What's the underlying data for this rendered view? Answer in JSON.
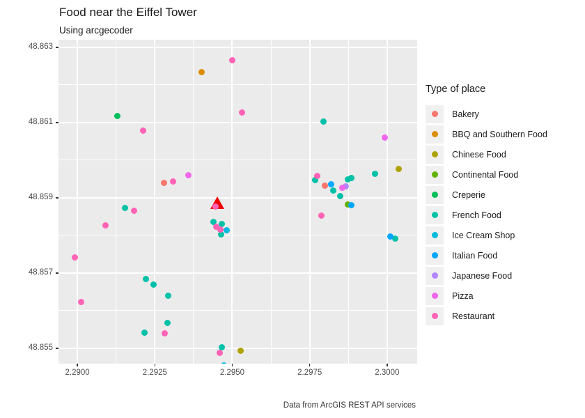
{
  "header": {
    "title": "Food near the Eiffel Tower",
    "subtitle": "Using arcgecoder",
    "caption": "Data from ArcGIS REST API services"
  },
  "legend": {
    "title": "Type of place",
    "items": [
      {
        "label": "Bakery",
        "color": "#F8766D"
      },
      {
        "label": "BBQ and Southern Food",
        "color": "#DB8E00"
      },
      {
        "label": "Chinese Food",
        "color": "#AEA200"
      },
      {
        "label": "Continental Food",
        "color": "#64B200"
      },
      {
        "label": "Creperie",
        "color": "#00BD5C"
      },
      {
        "label": "French Food",
        "color": "#00C1A7"
      },
      {
        "label": "Ice Cream Shop",
        "color": "#00BADE"
      },
      {
        "label": "Italian Food",
        "color": "#00A6FF"
      },
      {
        "label": "Japanese Food",
        "color": "#B385FF"
      },
      {
        "label": "Pizza",
        "color": "#EF67EB"
      },
      {
        "label": "Restaurant",
        "color": "#FF63B6"
      }
    ]
  },
  "chart_data": {
    "type": "scatter",
    "title": "Food near the Eiffel Tower",
    "subtitle": "Using arcgecoder",
    "caption": "Data from ArcGIS REST API services",
    "xlabel": "",
    "ylabel": "",
    "xlim": [
      2.28939,
      2.30097
    ],
    "ylim": [
      48.85459,
      48.8632
    ],
    "x_major": [
      2.29,
      2.2925,
      2.295,
      2.2975,
      2.3
    ],
    "x_minor": [
      2.29125,
      2.29375,
      2.29625,
      2.29875
    ],
    "y_major": [
      48.855,
      48.857,
      48.859,
      48.861,
      48.863
    ],
    "y_minor": [
      48.856,
      48.858,
      48.86,
      48.862
    ],
    "x_tick_labels": [
      "2.2900",
      "2.2925",
      "2.2950",
      "2.2975",
      "2.3000"
    ],
    "y_tick_labels": [
      "48.855",
      "48.857",
      "48.859",
      "48.861",
      "48.863"
    ],
    "panel_background": "#EBEBEB",
    "gridline_color": "#FFFFFF",
    "legend_position": "right",
    "series": [
      {
        "name": "Bakery",
        "color": "#F8766D",
        "points": [
          [
            2.29279,
            48.85939
          ],
          [
            2.298,
            48.85932
          ]
        ]
      },
      {
        "name": "BBQ and Southern Food",
        "color": "#DB8E00",
        "points": [
          [
            2.29402,
            48.86233
          ]
        ]
      },
      {
        "name": "Chinese Food",
        "color": "#AEA200",
        "points": [
          [
            2.30038,
            48.85976
          ],
          [
            2.29528,
            48.85493
          ]
        ]
      },
      {
        "name": "Continental Food",
        "color": "#64B200",
        "points": [
          [
            2.29874,
            48.85883
          ]
        ]
      },
      {
        "name": "Creperie",
        "color": "#00BD5C",
        "points": [
          [
            2.29128,
            48.86118
          ]
        ]
      },
      {
        "name": "French Food",
        "color": "#00C1A7",
        "points": [
          [
            2.29795,
            48.86103
          ],
          [
            2.29961,
            48.85963
          ],
          [
            2.29874,
            48.85948
          ],
          [
            2.29885,
            48.85952
          ],
          [
            2.29768,
            48.85947
          ],
          [
            2.29827,
            48.85919
          ],
          [
            2.29849,
            48.85904
          ],
          [
            2.30027,
            48.85792
          ],
          [
            2.29153,
            48.85872
          ],
          [
            2.2944,
            48.85835
          ],
          [
            2.29467,
            48.85831
          ],
          [
            2.29463,
            48.85803
          ],
          [
            2.29222,
            48.85684
          ],
          [
            2.29245,
            48.85669
          ],
          [
            2.29294,
            48.8564
          ],
          [
            2.29292,
            48.85567
          ],
          [
            2.29216,
            48.85541
          ],
          [
            2.29467,
            48.85502
          ]
        ]
      },
      {
        "name": "Ice Cream Shop",
        "color": "#00BADE",
        "points": [
          [
            2.29483,
            48.85814
          ],
          [
            2.29472,
            48.85455
          ]
        ]
      },
      {
        "name": "Italian Food",
        "color": "#00A6FF",
        "points": [
          [
            2.2982,
            48.85935
          ],
          [
            2.29885,
            48.85881
          ],
          [
            2.30011,
            48.85796
          ]
        ]
      },
      {
        "name": "Japanese Food",
        "color": "#B385FF",
        "points": [
          [
            2.29867,
            48.8593
          ]
        ]
      },
      {
        "name": "Pizza",
        "color": "#EF67EB",
        "points": [
          [
            2.29359,
            48.85959
          ],
          [
            2.29856,
            48.85926
          ],
          [
            2.29993,
            48.8606
          ]
        ]
      },
      {
        "name": "Restaurant",
        "color": "#FF63B6",
        "points": [
          [
            2.29499,
            48.86266
          ],
          [
            2.29532,
            48.86127
          ],
          [
            2.29213,
            48.86079
          ],
          [
            2.2931,
            48.85943
          ],
          [
            2.29775,
            48.85958
          ],
          [
            2.29788,
            48.85852
          ],
          [
            2.29184,
            48.85865
          ],
          [
            2.2909,
            48.85826
          ],
          [
            2.28991,
            48.85742
          ],
          [
            2.29013,
            48.85623
          ],
          [
            2.29283,
            48.85539
          ],
          [
            2.2946,
            48.85487
          ],
          [
            2.29449,
            48.85822
          ],
          [
            2.29461,
            48.85816
          ],
          [
            2.29447,
            48.85876
          ]
        ]
      }
    ],
    "annotation": {
      "name": "eiffel-tower-marker",
      "shape": "triangle",
      "color": "#EE0000",
      "lon": 2.29451,
      "lat": 48.85879
    }
  }
}
